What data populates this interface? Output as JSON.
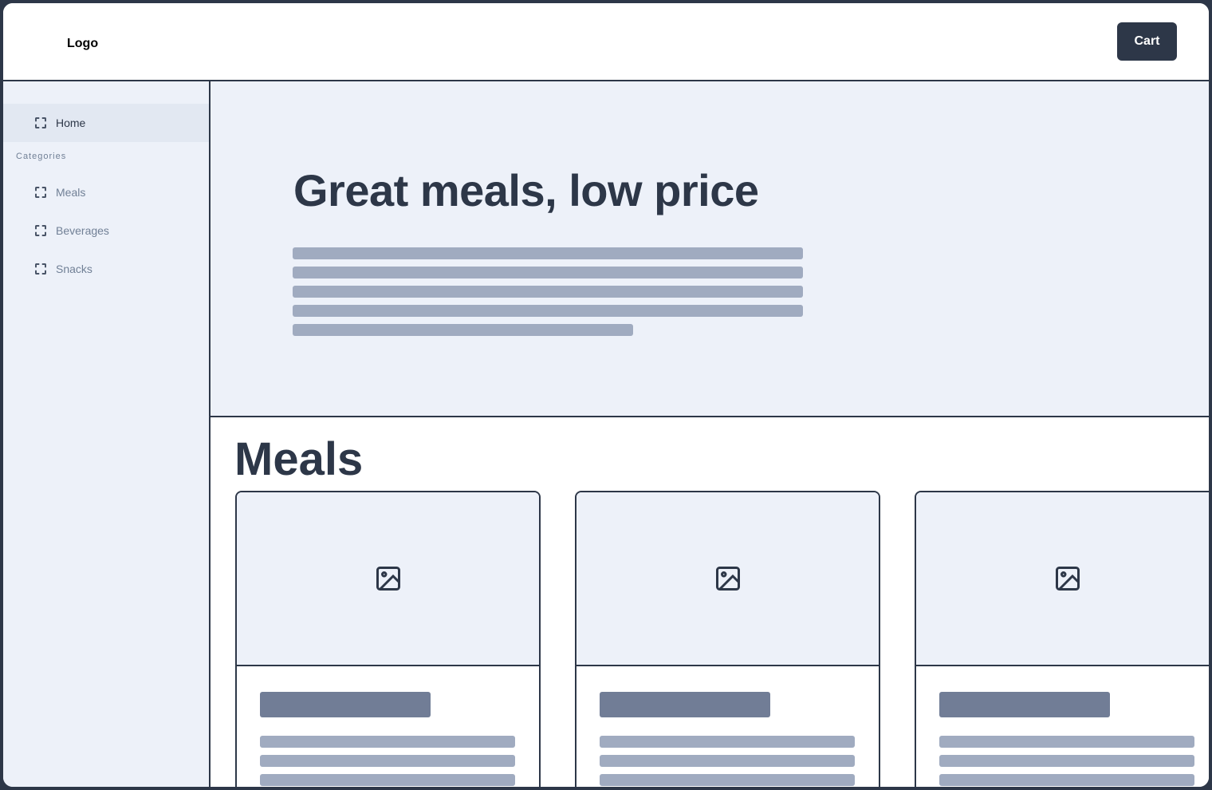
{
  "header": {
    "logo": "Logo",
    "cart_label": "Cart"
  },
  "sidebar": {
    "home": "Home",
    "categories_label": "Categories",
    "items": [
      {
        "label": "Meals"
      },
      {
        "label": "Beverages"
      },
      {
        "label": "Snacks"
      }
    ]
  },
  "hero": {
    "title": "Great meals, low price"
  },
  "section": {
    "title": "Meals"
  },
  "colors": {
    "primary": "#2d3748",
    "background": "#edf1f9",
    "placeholder_dark": "#717d96",
    "placeholder_light": "#a0abc0"
  },
  "cards": [
    {
      "icon": "image-icon"
    },
    {
      "icon": "image-icon"
    },
    {
      "icon": "image-icon"
    }
  ]
}
